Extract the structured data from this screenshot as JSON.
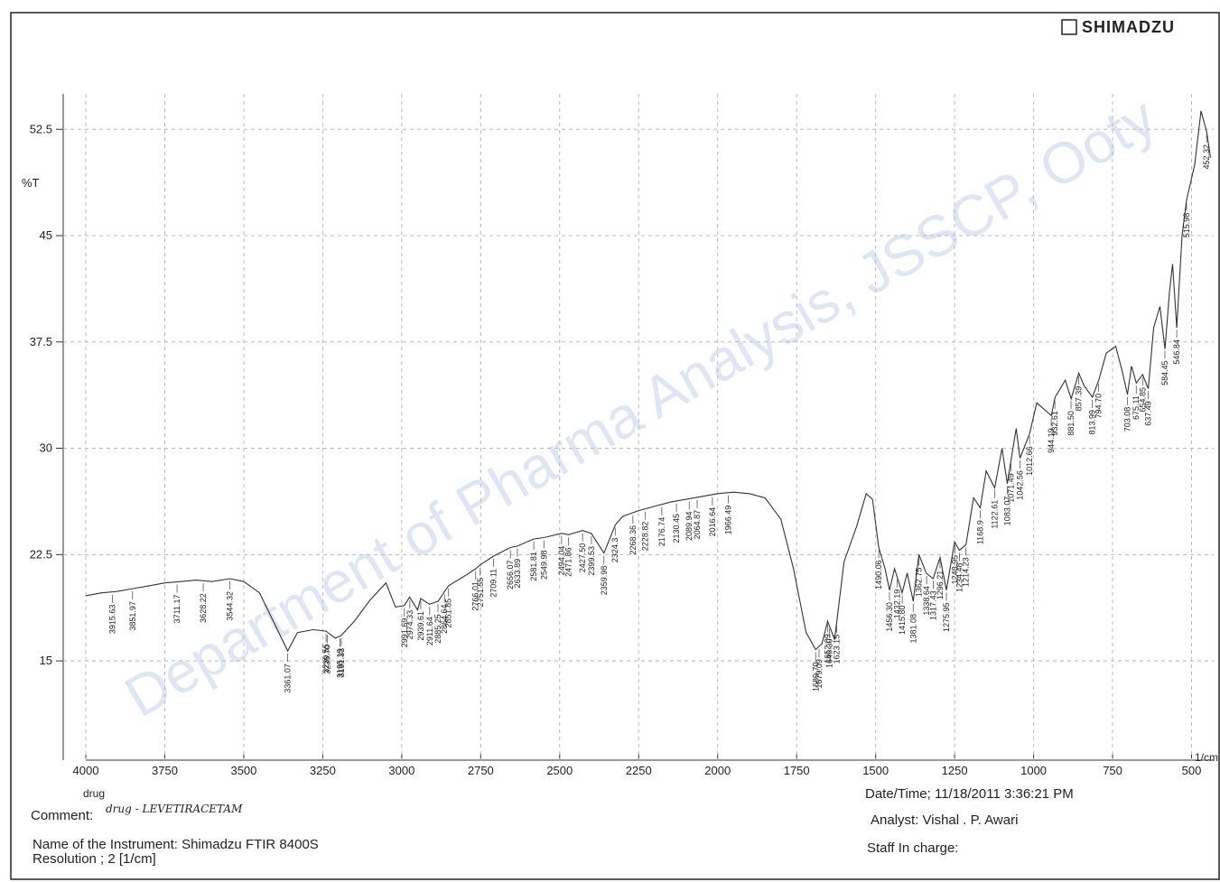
{
  "brand": "SHIMADZU",
  "watermark": "Department of Pharma Analysis, JSSCP, Ooty",
  "footer": {
    "comment_label": "Comment:",
    "comment": "drug - LEVETIRACETAM",
    "instrument": "Name of the Instrument: Shimadzu FTIR 8400S",
    "resolution": "Resolution ;   2 [1/cm]",
    "datetime": "Date/Time; 11/18/2011 3:36:21 PM",
    "analyst": "Analyst: Vishal . P. Awari",
    "staff": "Staff In charge:"
  },
  "chart_data": {
    "type": "line",
    "ylabel": "%T",
    "xlabel": "1/cm",
    "sample": "drug",
    "color": "#333333",
    "grid": true,
    "xlim": [
      4000,
      430
    ],
    "ylim": [
      8,
      55
    ],
    "xticks": [
      4000,
      3750,
      3500,
      3250,
      3000,
      2750,
      2500,
      2250,
      2000,
      1750,
      1500,
      1250,
      1000,
      750,
      500
    ],
    "yticks": [
      15,
      22.5,
      30,
      37.5,
      45,
      52.5
    ],
    "x": [
      4000,
      3950,
      3900,
      3850,
      3800,
      3750,
      3700,
      3650,
      3600,
      3544,
      3500,
      3450,
      3400,
      3361,
      3330,
      3280,
      3240,
      3210,
      3191,
      3150,
      3100,
      3050,
      3020,
      2992,
      2975,
      2950,
      2940,
      2912,
      2885,
      2852,
      2800,
      2766,
      2750,
      2709,
      2656,
      2634,
      2582,
      2550,
      2494,
      2472,
      2428,
      2400,
      2360,
      2324,
      2300,
      2250,
      2200,
      2150,
      2100,
      2050,
      2000,
      1950,
      1900,
      1850,
      1800,
      1760,
      1720,
      1690,
      1670,
      1652,
      1630,
      1600,
      1560,
      1530,
      1510,
      1490,
      1470,
      1456,
      1440,
      1416,
      1400,
      1381,
      1363,
      1340,
      1318,
      1296,
      1276,
      1250,
      1235,
      1214,
      1190,
      1169,
      1150,
      1123,
      1100,
      1083,
      1071,
      1055,
      1043,
      1013,
      990,
      944,
      932,
      900,
      881,
      857,
      840,
      814,
      794,
      770,
      740,
      720,
      703,
      690,
      675,
      655,
      637,
      620,
      600,
      584,
      570,
      560,
      547,
      530,
      516,
      490,
      470,
      452,
      440
    ],
    "values": [
      19.6,
      19.8,
      19.9,
      20.1,
      20.3,
      20.5,
      20.6,
      20.7,
      20.6,
      20.8,
      20.6,
      19.8,
      17.5,
      15.7,
      17.0,
      17.2,
      17.1,
      16.6,
      16.8,
      17.8,
      19.3,
      20.5,
      18.8,
      18.9,
      19.5,
      18.6,
      19.4,
      19.0,
      19.2,
      20.3,
      21.0,
      21.5,
      21.8,
      22.4,
      23.0,
      23.1,
      23.6,
      23.7,
      24.0,
      23.9,
      24.2,
      24.0,
      22.6,
      24.6,
      25.2,
      25.6,
      25.9,
      26.2,
      26.4,
      26.6,
      26.8,
      26.9,
      26.8,
      26.5,
      25.0,
      21.5,
      17.0,
      15.8,
      16.2,
      17.8,
      16.5,
      22.0,
      24.5,
      26.8,
      26.4,
      23.0,
      21.5,
      20.0,
      21.5,
      19.8,
      21.2,
      19.2,
      22.5,
      21.2,
      20.8,
      22.3,
      20.0,
      23.4,
      22.8,
      23.2,
      26.5,
      25.8,
      28.4,
      27.2,
      30.0,
      27.5,
      29.2,
      31.4,
      29.3,
      31.0,
      33.2,
      32.3,
      33.6,
      34.8,
      33.5,
      35.3,
      34.4,
      33.6,
      34.8,
      36.7,
      37.2,
      35.5,
      33.8,
      35.8,
      34.6,
      35.2,
      34.2,
      38.5,
      40.0,
      37.0,
      41.0,
      43.0,
      38.5,
      45.0,
      47.5,
      50.0,
      53.8,
      52.3,
      50.5
    ],
    "peaks": [
      3915.63,
      3851.97,
      3711.17,
      3628.22,
      3544.32,
      3361.07,
      3239.55,
      {
        "value": 3235.7,
        "label": "3235.70"
      },
      3195.19,
      3191.33,
      2991.69,
      2974.33,
      2939.61,
      2911.64,
      2885.25,
      2864.64,
      2851.85,
      2766.01,
      2751.55,
      2709.11,
      2656.07,
      2633.89,
      2581.81,
      2549.98,
      2494.04,
      2471.86,
      {
        "value": 2427.5,
        "label": "2427.50"
      },
      2399.53,
      2359.98,
      2324.3,
      2268.36,
      2228.82,
      2176.74,
      2130.45,
      2089.94,
      2064.87,
      2016.64,
      1966.49,
      {
        "value": 1689.7,
        "label": "1689.70"
      },
      1679.09,
      1652.09,
      {
        "value": 1646.3,
        "label": "1646.30"
      },
      1623.15,
      1490.06,
      {
        "value": 1456.3,
        "label": "1456.30"
      },
      1432.19,
      {
        "value": 1415.8,
        "label": "1415.80"
      },
      1381.08,
      1362.75,
      1338.64,
      1317.43,
      1296.21,
      1275.95,
      1248.95,
      1234.48,
      1214.23,
      1168.9,
      1122.61,
      1083.07,
      1071.49,
      1042.56,
      1012.66,
      944.19,
      932.61,
      {
        "value": 881.5,
        "label": "881.50"
      },
      857.39,
      813.99,
      {
        "value": 794.7,
        "label": "794.70"
      },
      703.08,
      675.11,
      654.85,
      637.49,
      584.45,
      546.84,
      515.98,
      452.32
    ]
  }
}
